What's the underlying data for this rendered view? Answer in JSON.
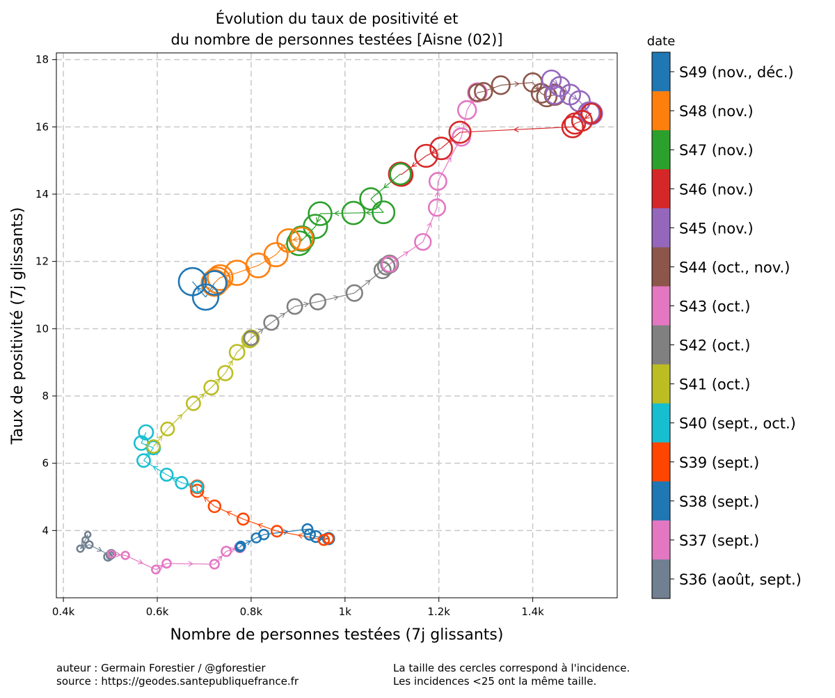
{
  "chart_data": {
    "type": "scatter",
    "title_lines": [
      "Évolution du taux de positivité et",
      "du nombre de personnes testées [Aisne (02)]"
    ],
    "xlabel": "Nombre de personnes testées (7j glissants)",
    "ylabel": "Taux de positivité (7j glissants)",
    "xlim": [
      385,
      1580
    ],
    "ylim": [
      2.0,
      18.2
    ],
    "xticks": [
      400,
      600,
      800,
      1000,
      1200,
      1400
    ],
    "xtick_labels": [
      "0.4k",
      "0.6k",
      "0.8k",
      "1k",
      "1.2k",
      "1.4k"
    ],
    "yticks": [
      4,
      6,
      8,
      10,
      12,
      14,
      16,
      18
    ],
    "ytick_labels": [
      "4",
      "6",
      "8",
      "10",
      "12",
      "14",
      "16",
      "18"
    ],
    "grid": true,
    "colorbar_title": "date",
    "series": [
      {
        "name": "S36 (août, sept.)",
        "color": "#708090",
        "points": [
          [
            452,
            3.88
          ],
          [
            447,
            3.72
          ],
          [
            436,
            3.46
          ],
          [
            455,
            3.58
          ],
          [
            500,
            3.26
          ],
          [
            495,
            3.22
          ],
          [
            502,
            3.3
          ]
        ]
      },
      {
        "name": "S37 (sept.)",
        "color": "#e377c2",
        "points": [
          [
            502,
            3.3
          ],
          [
            532,
            3.26
          ],
          [
            597,
            2.84
          ],
          [
            620,
            3.02
          ],
          [
            722,
            3.0
          ],
          [
            747,
            3.38
          ],
          [
            776,
            3.5
          ]
        ]
      },
      {
        "name": "S38 (sept.)",
        "color": "#1f77b4",
        "points": [
          [
            776,
            3.5
          ],
          [
            778,
            3.54
          ],
          [
            811,
            3.78
          ],
          [
            827,
            3.88
          ],
          [
            920,
            4.04
          ],
          [
            925,
            3.88
          ],
          [
            938,
            3.82
          ],
          [
            965,
            3.76
          ]
        ]
      },
      {
        "name": "S39 (sept.)",
        "color": "#ff4500",
        "points": [
          [
            965,
            3.76
          ],
          [
            955,
            3.72
          ],
          [
            855,
            3.98
          ],
          [
            783,
            4.34
          ],
          [
            722,
            4.72
          ],
          [
            685,
            5.18
          ],
          [
            685,
            5.3
          ]
        ]
      },
      {
        "name": "S40 (sept., oct.)",
        "color": "#17becf",
        "points": [
          [
            685,
            5.3
          ],
          [
            652,
            5.42
          ],
          [
            620,
            5.66
          ],
          [
            571,
            6.08
          ],
          [
            592,
            6.46
          ],
          [
            566,
            6.6
          ],
          [
            576,
            6.92
          ]
        ]
      },
      {
        "name": "S41 (oct.)",
        "color": "#bcbd22",
        "points": [
          [
            592,
            6.5
          ],
          [
            622,
            7.02
          ],
          [
            677,
            7.78
          ],
          [
            715,
            8.25
          ],
          [
            745,
            8.68
          ],
          [
            770,
            9.3
          ],
          [
            797,
            9.67
          ],
          [
            800,
            9.72
          ]
        ]
      },
      {
        "name": "S42 (oct.)",
        "color": "#808080",
        "points": [
          [
            800,
            9.72
          ],
          [
            843,
            10.18
          ],
          [
            893,
            10.66
          ],
          [
            942,
            10.8
          ],
          [
            1020,
            11.06
          ],
          [
            1080,
            11.74
          ],
          [
            1088,
            11.86
          ],
          [
            1095,
            11.92
          ]
        ]
      },
      {
        "name": "S43 (oct.)",
        "color": "#e377c2",
        "points": [
          [
            1095,
            11.92
          ],
          [
            1166,
            12.58
          ],
          [
            1196,
            13.6
          ],
          [
            1198,
            14.38
          ],
          [
            1248,
            15.7
          ],
          [
            1260,
            16.5
          ],
          [
            1282,
            17.02
          ]
        ]
      },
      {
        "name": "S44 (oct., nov.)",
        "color": "#8c564b",
        "points": [
          [
            1282,
            17.02
          ],
          [
            1295,
            17.05
          ],
          [
            1332,
            17.24
          ],
          [
            1400,
            17.32
          ],
          [
            1418,
            17.0
          ],
          [
            1430,
            16.9
          ],
          [
            1447,
            16.95
          ]
        ]
      },
      {
        "name": "S45 (nov.)",
        "color": "#9467bd",
        "points": [
          [
            1447,
            16.95
          ],
          [
            1440,
            17.4
          ],
          [
            1458,
            17.2
          ],
          [
            1480,
            16.96
          ],
          [
            1500,
            16.76
          ],
          [
            1520,
            16.42
          ],
          [
            1525,
            16.4
          ]
        ]
      },
      {
        "name": "S46 (nov.)",
        "color": "#d62728",
        "points": [
          [
            1525,
            16.4
          ],
          [
            1505,
            16.18
          ],
          [
            1490,
            16.1
          ],
          [
            1485,
            16.0
          ],
          [
            1245,
            15.84
          ],
          [
            1205,
            15.36
          ],
          [
            1173,
            15.14
          ],
          [
            1120,
            14.58
          ],
          [
            1118,
            14.6
          ]
        ]
      },
      {
        "name": "S47 (nov.)",
        "color": "#2ca02c",
        "points": [
          [
            1118,
            14.6
          ],
          [
            1055,
            13.86
          ],
          [
            1082,
            13.46
          ],
          [
            1018,
            13.44
          ],
          [
            947,
            13.42
          ],
          [
            937,
            13.04
          ],
          [
            902,
            12.54
          ],
          [
            908,
            12.68
          ]
        ]
      },
      {
        "name": "S48 (nov.)",
        "color": "#ff7f0e",
        "points": [
          [
            908,
            12.68
          ],
          [
            880,
            12.62
          ],
          [
            853,
            12.2
          ],
          [
            815,
            11.88
          ],
          [
            770,
            11.66
          ],
          [
            734,
            11.52
          ],
          [
            728,
            11.44
          ],
          [
            722,
            11.36
          ]
        ]
      },
      {
        "name": "S49 (nov., déc.)",
        "color": "#1f77b4",
        "points": [
          [
            722,
            11.36
          ],
          [
            703,
            10.94
          ],
          [
            675,
            11.4
          ]
        ]
      }
    ],
    "legend_order": [
      "S49 (nov., déc.)",
      "S48 (nov.)",
      "S47 (nov.)",
      "S46 (nov.)",
      "S45 (nov.)",
      "S44 (oct., nov.)",
      "S43 (oct.)",
      "S42 (oct.)",
      "S41 (oct.)",
      "S40 (sept., oct.)",
      "S39 (sept.)",
      "S38 (sept.)",
      "S37 (sept.)",
      "S36 (août, sept.)"
    ]
  },
  "footer": {
    "author": "auteur : Germain Forestier / @gforestier",
    "source": "source : https://geodes.santepubliquefrance.fr",
    "note1": "La taille des cercles correspond à l'incidence.",
    "note2": "Les incidences <25 ont la même taille."
  }
}
